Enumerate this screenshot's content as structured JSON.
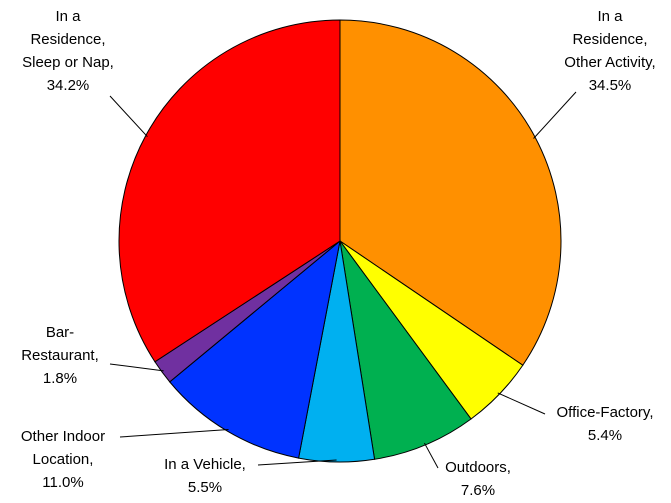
{
  "chart_data": {
    "type": "pie",
    "categories": [
      [
        "In a",
        "Residence,",
        "Other Activity,"
      ],
      [
        "Office-Factory,"
      ],
      [
        "Outdoors,"
      ],
      [
        "In a Vehicle,"
      ],
      [
        "Other Indoor",
        "Location,"
      ],
      [
        "Bar-",
        "Restaurant,"
      ],
      [
        "In a",
        "Residence,",
        "Sleep or Nap,"
      ]
    ],
    "values": [
      34.5,
      5.4,
      7.6,
      5.5,
      11.0,
      1.8,
      34.2
    ],
    "value_labels": [
      "34.5%",
      "5.4%",
      "7.6%",
      "5.5%",
      "11.0%",
      "1.8%",
      "34.2%"
    ],
    "colors": [
      "#ff9000",
      "#ffff00",
      "#00b050",
      "#00b0f0",
      "#0033ff",
      "#7030a0",
      "#ff0000"
    ]
  }
}
